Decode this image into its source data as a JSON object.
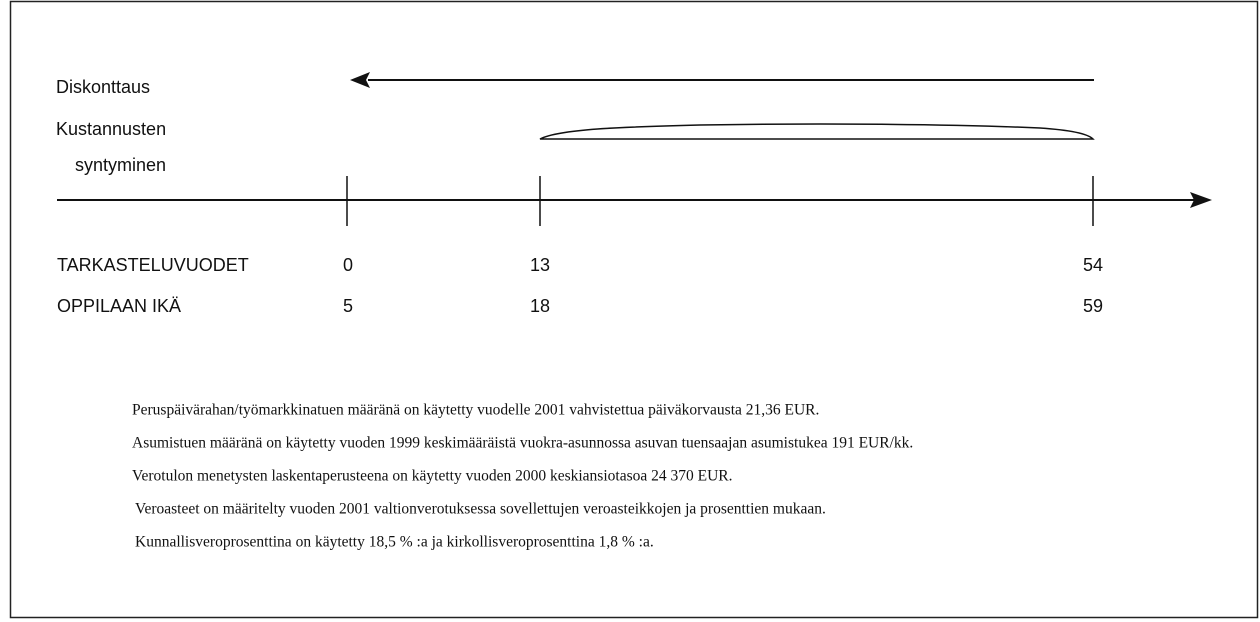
{
  "labels": {
    "discounting": "Diskonttaus",
    "cost_line1": "Kustannusten",
    "cost_line2": "syntyminen"
  },
  "rows": [
    {
      "label": "TARKASTELUVUODET",
      "values": [
        0,
        13,
        54
      ]
    },
    {
      "label": "OPPILAAN IKÄ",
      "values": [
        5,
        18,
        59
      ]
    }
  ],
  "notes": [
    "Peruspäivärahan/työmarkkinatuen määränä on käytetty vuodelle 2001 vahvistettua päiväkorvausta 21,36 EUR.",
    "Asumistuen määränä on käytetty vuoden 1999 keskimääräistä vuokra-asunnossa asuvan tuensaajan asumistukea 191 EUR/kk.",
    "Verotulon menetysten laskentaperusteena on käytetty vuoden 2000 keskiansiotasoa 24 370 EUR.",
    "Veroasteet on määritelty vuoden 2001 valtionverotuksessa sovellettujen veroasteikkojen ja prosenttien mukaan.",
    "Kunnallisveroprosenttina on käytetty 18,5 % :a ja kirkollisveroprosenttina 1,8 % :a."
  ]
}
